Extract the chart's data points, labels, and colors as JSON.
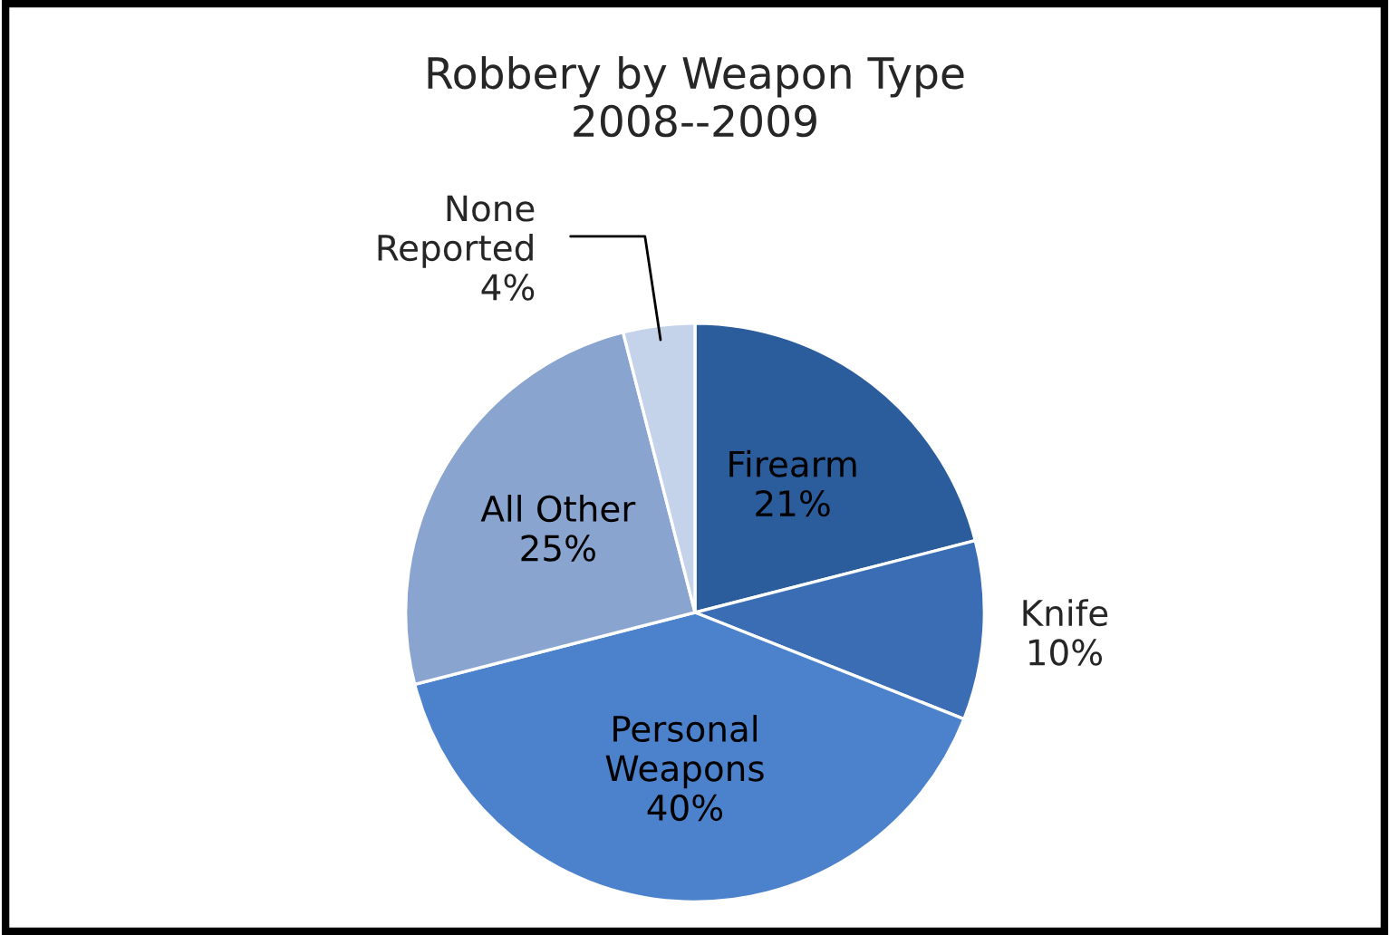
{
  "chart_data": {
    "type": "pie",
    "title": "Robbery by Weapon Type\n2008--2009",
    "categories": [
      "Firearm",
      "Knife",
      "Personal\nWeapons",
      "All Other",
      "None\nReported"
    ],
    "values": [
      21,
      10,
      40,
      25,
      4
    ],
    "colors": [
      "#2b5c9c",
      "#3a6db4",
      "#4c82cc",
      "#8aa4d0",
      "#c4d2ea"
    ],
    "value_labels": [
      "21%",
      "10%",
      "40%",
      "25%",
      "4%"
    ]
  }
}
